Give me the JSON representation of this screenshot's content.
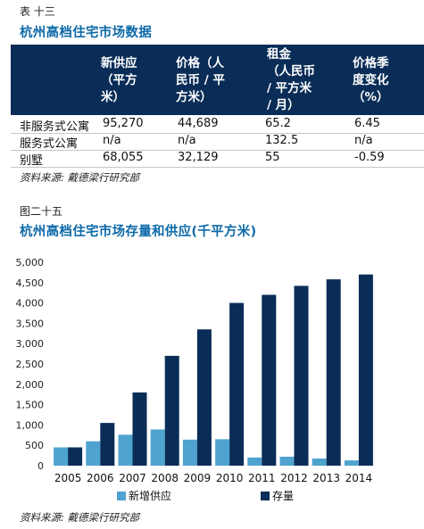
{
  "table_section": {
    "label": "表 十三",
    "title": "杭州高档住宅市场数据",
    "headers": [
      "新供应\n（平方\n米）",
      "价格（人\n民币 / 平\n方米）",
      "租金\n（人民币\n/ 平方米\n/ 月）",
      "价格季\n度变化\n（%）"
    ],
    "rows": [
      {
        "name": "非服务式公寓",
        "supply": "95,270",
        "price": "44,689",
        "rent": "65.2",
        "change": "6.45"
      },
      {
        "name": "服务式公寓",
        "supply": "n/a",
        "price": "n/a",
        "rent": "132.5",
        "change": "n/a"
      },
      {
        "name": "别墅",
        "supply": "68,055",
        "price": "32,129",
        "rent": "55",
        "change": "-0.59"
      }
    ],
    "source": "资料来源: 戴德梁行研究部"
  },
  "chart_section": {
    "label": "图二十五",
    "title": "杭州高档住宅市场存量和供应(千平方米)",
    "source": "资料来源: 戴德梁行研究部"
  },
  "chart_data": {
    "type": "bar",
    "categories": [
      "2005",
      "2006",
      "2007",
      "2008",
      "2009",
      "2010",
      "2011",
      "2012",
      "2013",
      "2014"
    ],
    "series": [
      {
        "name": "新增供应",
        "color": "#4fa3cf",
        "values": [
          450,
          600,
          760,
          890,
          640,
          650,
          200,
          220,
          175,
          130
        ]
      },
      {
        "name": "存量",
        "color": "#0a2d57",
        "values": [
          450,
          1050,
          1800,
          2700,
          3350,
          4000,
          4200,
          4420,
          4580,
          4700
        ]
      }
    ],
    "ylim": [
      0,
      5000
    ],
    "yticks": [
      0,
      500,
      1000,
      1500,
      2000,
      2500,
      3000,
      3500,
      4000,
      4500,
      5000
    ],
    "ytick_labels": [
      "0",
      "500",
      "1,000",
      "1,500",
      "2,000",
      "2,500",
      "3,000",
      "3,500",
      "4,000",
      "4,500",
      "5,000"
    ],
    "legend_position": "bottom",
    "grid": false
  }
}
